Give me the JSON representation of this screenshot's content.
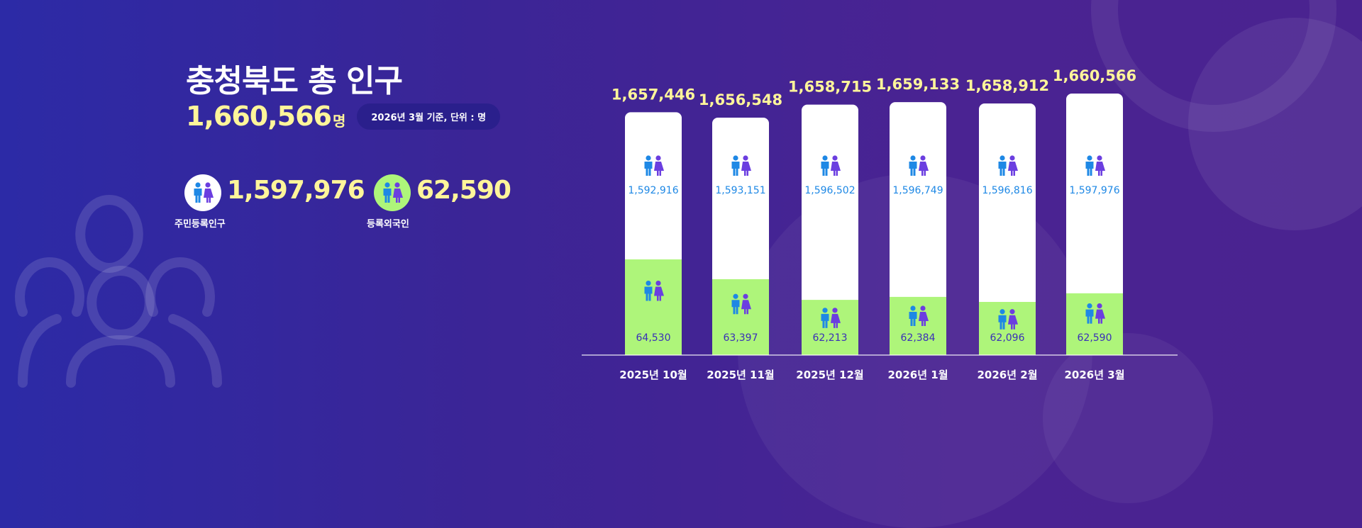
{
  "title": "충청북도 총 인구",
  "total": {
    "value": "1,660,566",
    "unit": "명"
  },
  "basis": "2026년 3월 기준, 단위 : 명",
  "stats": [
    {
      "value": "1,597,976",
      "label": "주민등록인구"
    },
    {
      "value": "62,590",
      "label": "등록외국인"
    }
  ],
  "colors": {
    "resident": "#ffffff",
    "foreign": "#aef57a",
    "total_label": "#fff59a",
    "resident_text": "#1e88e5",
    "foreign_text": "#3a2fb8"
  },
  "chart_data": {
    "type": "bar",
    "stacked": true,
    "categories": [
      "2025년 10월",
      "2025년 11월",
      "2025년 12월",
      "2026년 1월",
      "2026년 2월",
      "2026년 3월"
    ],
    "totals": [
      "1,657,446",
      "1,656,548",
      "1,658,715",
      "1,659,133",
      "1,658,912",
      "1,660,566"
    ],
    "series": [
      {
        "name": "주민등록인구",
        "values": [
          1592916,
          1593151,
          1596502,
          1596749,
          1596816,
          1597976
        ],
        "labels": [
          "1,592,916",
          "1,593,151",
          "1,596,502",
          "1,596,749",
          "1,596,816",
          "1,597,976"
        ]
      },
      {
        "name": "등록외국인",
        "values": [
          64530,
          63397,
          62213,
          62384,
          62096,
          62590
        ],
        "labels": [
          "64,530",
          "63,397",
          "62,213",
          "62,384",
          "62,096",
          "62,590"
        ]
      }
    ],
    "title": "",
    "xlabel": "",
    "ylabel": ""
  }
}
